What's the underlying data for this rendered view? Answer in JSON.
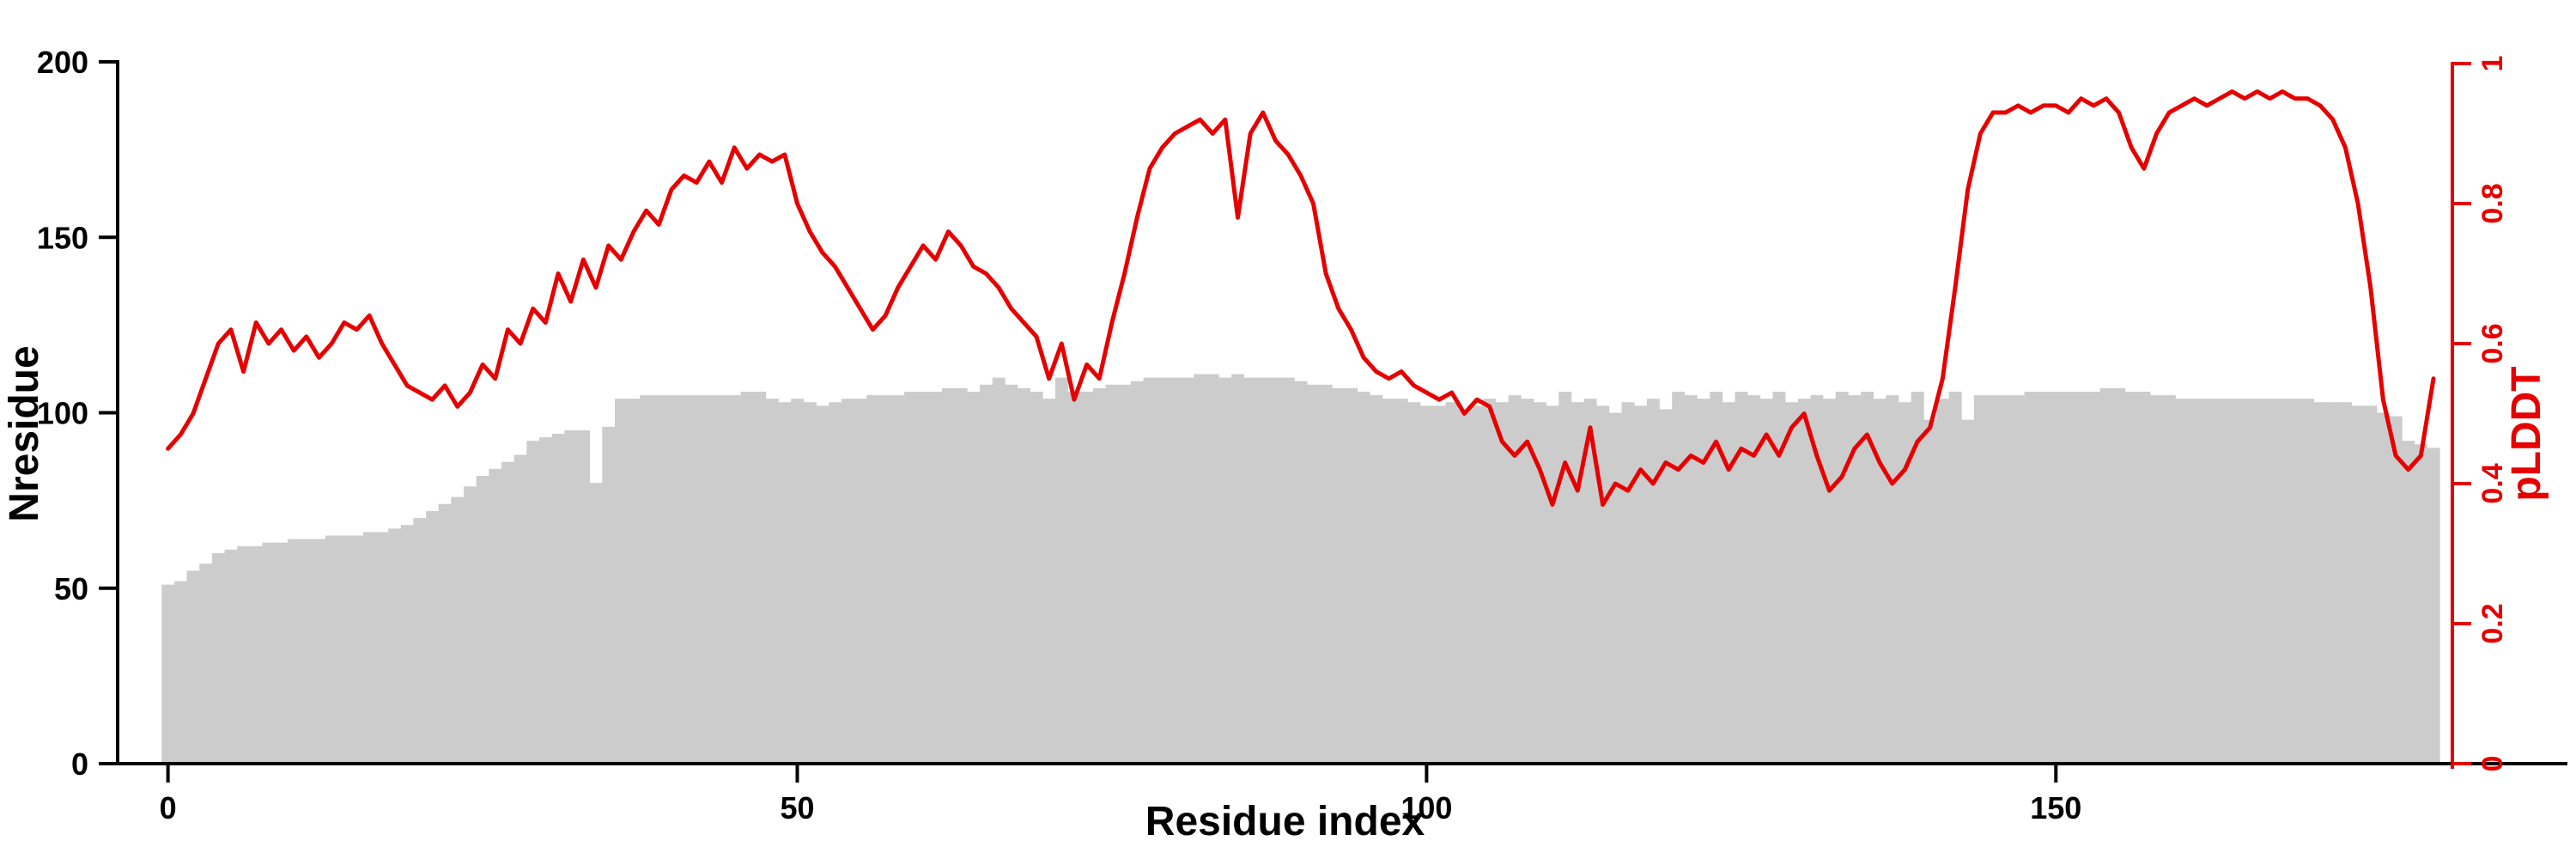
{
  "chart_data": {
    "type": "bar",
    "title": "",
    "xlabel": "Residue index",
    "ylabel_left": "Nresidue",
    "ylabel_right": "pLDDT",
    "x_start": 0,
    "x_step": 1,
    "xlim": [
      -4,
      181.5
    ],
    "x_ticks": [
      0,
      50,
      100,
      150
    ],
    "x_tick_labels": [
      "0",
      "50",
      "100",
      "150"
    ],
    "left_ylim": [
      0,
      200
    ],
    "left_ticks": [
      0,
      50,
      100,
      150,
      200
    ],
    "left_tick_labels": [
      "0",
      "50",
      "100",
      "150",
      "200"
    ],
    "right_ylim": [
      0,
      1
    ],
    "right_ticks": [
      0,
      0.2,
      0.4,
      0.6,
      0.8,
      1
    ],
    "right_tick_labels": [
      "0",
      "0.2",
      "0.4",
      "0.6",
      "0.8",
      "1"
    ],
    "bar_color": "#cccccc",
    "line_color": "#e60000",
    "axis_color": "#000000",
    "grid": false,
    "legend": "none",
    "series": [
      {
        "name": "Nresidue",
        "type": "bar",
        "axis": "left",
        "values": [
          51,
          52,
          55,
          57,
          60,
          61,
          62,
          62,
          63,
          63,
          64,
          64,
          64,
          65,
          65,
          65,
          66,
          66,
          67,
          68,
          70,
          72,
          74,
          76,
          79,
          82,
          84,
          86,
          88,
          92,
          93,
          94,
          95,
          95,
          80,
          96,
          104,
          104,
          105,
          105,
          105,
          105,
          105,
          105,
          105,
          105,
          106,
          106,
          104,
          103,
          104,
          103,
          102,
          103,
          104,
          104,
          105,
          105,
          105,
          106,
          106,
          106,
          107,
          107,
          106,
          108,
          110,
          108,
          107,
          106,
          104,
          110,
          106,
          106,
          107,
          108,
          108,
          109,
          110,
          110,
          110,
          110,
          111,
          111,
          110,
          111,
          110,
          110,
          110,
          110,
          109,
          108,
          108,
          107,
          107,
          106,
          105,
          104,
          104,
          103,
          102,
          102,
          103,
          101,
          102,
          104,
          103,
          105,
          104,
          103,
          102,
          106,
          103,
          104,
          102,
          100,
          103,
          102,
          104,
          101,
          106,
          105,
          104,
          106,
          103,
          106,
          105,
          104,
          106,
          103,
          104,
          105,
          104,
          106,
          105,
          106,
          104,
          105,
          103,
          106,
          98,
          104,
          106,
          98,
          105,
          105,
          105,
          105,
          106,
          106,
          106,
          106,
          106,
          106,
          107,
          107,
          106,
          106,
          105,
          105,
          104,
          104,
          104,
          104,
          104,
          104,
          104,
          104,
          104,
          104,
          104,
          103,
          103,
          103,
          102,
          102,
          100,
          99,
          92,
          91,
          90
        ]
      },
      {
        "name": "pLDDT",
        "type": "line",
        "axis": "right",
        "values": [
          0.45,
          0.47,
          0.5,
          0.55,
          0.6,
          0.62,
          0.56,
          0.63,
          0.6,
          0.62,
          0.59,
          0.61,
          0.58,
          0.6,
          0.63,
          0.62,
          0.64,
          0.6,
          0.57,
          0.54,
          0.53,
          0.52,
          0.54,
          0.51,
          0.53,
          0.57,
          0.55,
          0.62,
          0.6,
          0.65,
          0.63,
          0.7,
          0.66,
          0.72,
          0.68,
          0.74,
          0.72,
          0.76,
          0.79,
          0.77,
          0.82,
          0.84,
          0.83,
          0.86,
          0.83,
          0.88,
          0.85,
          0.87,
          0.86,
          0.87,
          0.8,
          0.76,
          0.73,
          0.71,
          0.68,
          0.65,
          0.62,
          0.64,
          0.68,
          0.71,
          0.74,
          0.72,
          0.76,
          0.74,
          0.71,
          0.7,
          0.68,
          0.65,
          0.63,
          0.61,
          0.55,
          0.6,
          0.52,
          0.57,
          0.55,
          0.63,
          0.7,
          0.78,
          0.85,
          0.88,
          0.9,
          0.91,
          0.92,
          0.9,
          0.92,
          0.78,
          0.9,
          0.93,
          0.89,
          0.87,
          0.84,
          0.8,
          0.7,
          0.65,
          0.62,
          0.58,
          0.56,
          0.55,
          0.56,
          0.54,
          0.53,
          0.52,
          0.53,
          0.5,
          0.52,
          0.51,
          0.46,
          0.44,
          0.46,
          0.42,
          0.37,
          0.43,
          0.39,
          0.48,
          0.37,
          0.4,
          0.39,
          0.42,
          0.4,
          0.43,
          0.42,
          0.44,
          0.43,
          0.46,
          0.42,
          0.45,
          0.44,
          0.47,
          0.44,
          0.48,
          0.5,
          0.44,
          0.39,
          0.41,
          0.45,
          0.47,
          0.43,
          0.4,
          0.42,
          0.46,
          0.48,
          0.55,
          0.68,
          0.82,
          0.9,
          0.93,
          0.93,
          0.94,
          0.93,
          0.94,
          0.94,
          0.93,
          0.95,
          0.94,
          0.95,
          0.93,
          0.88,
          0.85,
          0.9,
          0.93,
          0.94,
          0.95,
          0.94,
          0.95,
          0.96,
          0.95,
          0.96,
          0.95,
          0.96,
          0.95,
          0.95,
          0.94,
          0.92,
          0.88,
          0.8,
          0.68,
          0.52,
          0.44,
          0.42,
          0.44,
          0.55
        ]
      }
    ]
  }
}
